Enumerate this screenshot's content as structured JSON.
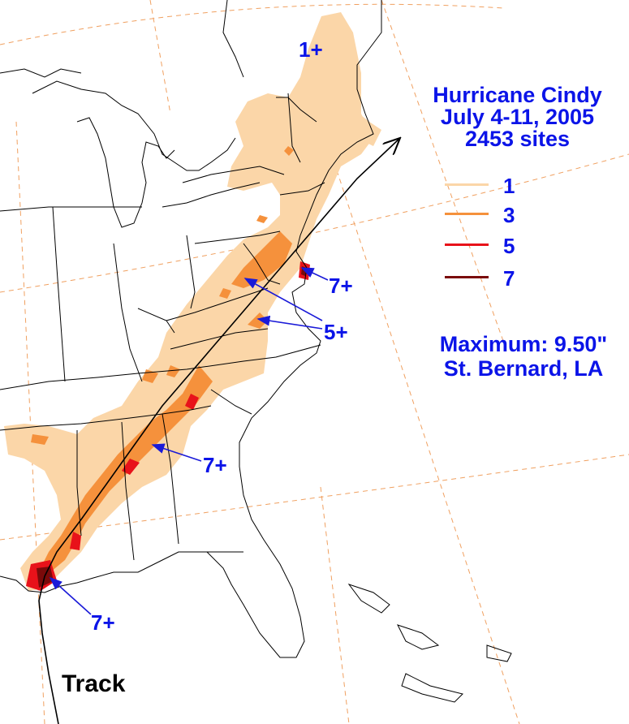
{
  "title": {
    "line1": "Hurricane Cindy",
    "line2": "July 4-11, 2005",
    "line3": "2453 sites"
  },
  "legend": [
    {
      "label": "1",
      "color": "#fbd6a8"
    },
    {
      "label": "3",
      "color": "#f5913c"
    },
    {
      "label": "5",
      "color": "#e8121a"
    },
    {
      "label": "7",
      "color": "#7a0a0a"
    }
  ],
  "maximum": {
    "value_text": "Maximum: 9.50\"",
    "location": "St. Bernard, LA"
  },
  "annotations": {
    "new_england": "1+",
    "delmarva": "7+",
    "virginia": "5+",
    "georgia": "7+",
    "louisiana": "7+"
  },
  "track_label": "Track",
  "colors": {
    "text_accent": "#0b14e8",
    "state_border": "#000000",
    "grid": "#f0a060",
    "track": "#000000",
    "arrow": "#1a1ad8"
  }
}
